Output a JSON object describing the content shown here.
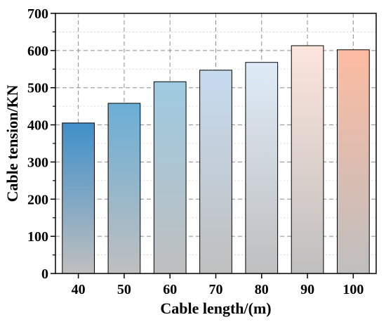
{
  "chart_data": {
    "type": "bar",
    "title": "",
    "xlabel": "Cable length/(m)",
    "ylabel": "Cable tension/KN",
    "categories": [
      "40",
      "50",
      "60",
      "70",
      "80",
      "90",
      "100"
    ],
    "values": [
      405,
      458,
      516,
      547,
      568,
      613,
      602
    ],
    "ylim": [
      0,
      700
    ],
    "yticks": [
      "0",
      "100",
      "200",
      "300",
      "400",
      "500",
      "600",
      "700"
    ],
    "grid": true,
    "legend": "none",
    "bar_top_colors": [
      "#3f8fc9",
      "#6aaed6",
      "#9ecae1",
      "#c6dbef",
      "#deebf7",
      "#fde5dc",
      "#fcbba1"
    ],
    "bar_bottom_color": "#bfbfbf"
  }
}
